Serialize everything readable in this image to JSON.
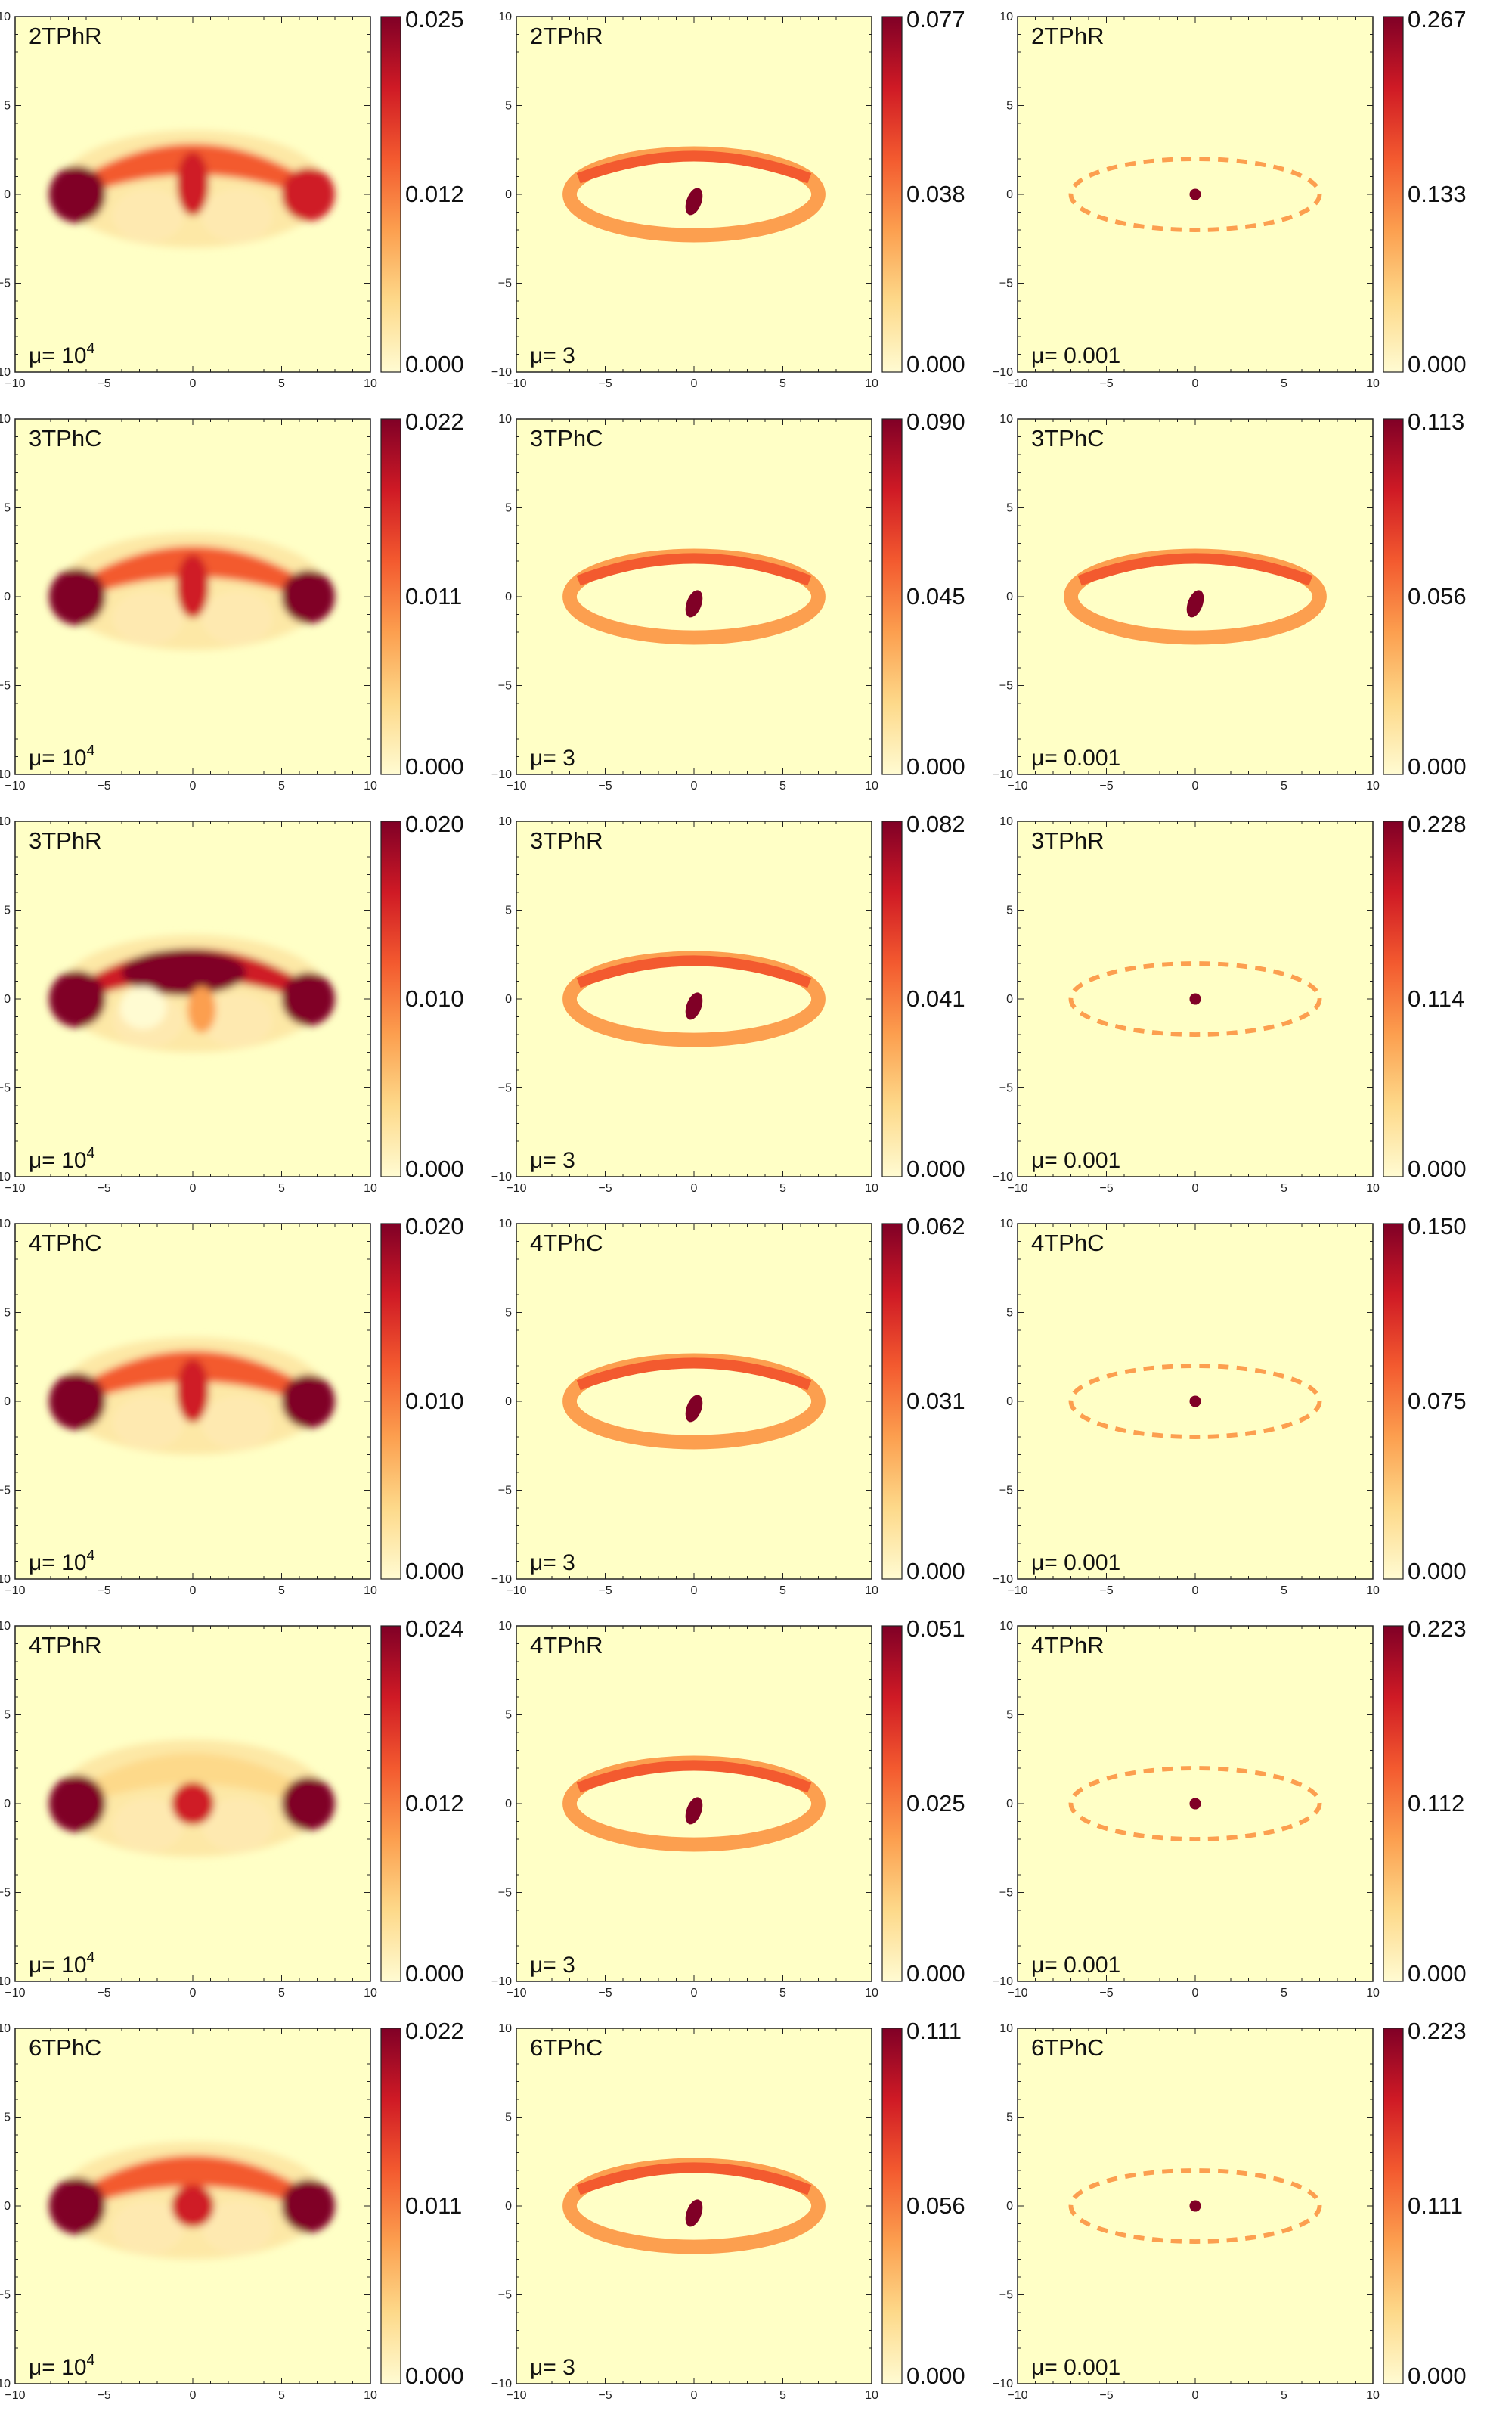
{
  "colorbar_colors": [
    "#fffbd2",
    "#fdd98a",
    "#fc9f4f",
    "#f35a2f",
    "#cf1a25",
    "#800026"
  ],
  "background_color": "#ffffc6",
  "chart_data": [
    {
      "type": "heatmap",
      "molecule": "2TPhR",
      "mu_text": "μ= 10",
      "mu_sup": "4",
      "mu": 10000,
      "cbar_max": "0.025",
      "cbar_mid": "0.012",
      "cbar_min": "0.000",
      "xlim": [
        -10,
        10
      ],
      "ylim": [
        -10,
        10
      ],
      "pattern": "lobes",
      "variant": "2R",
      "x_ticks": [
        "−10",
        "−5",
        "0",
        "5",
        "10"
      ],
      "y_ticks": [
        "−10",
        "−5",
        "0",
        "5",
        "10"
      ]
    },
    {
      "type": "heatmap",
      "molecule": "2TPhR",
      "mu_text": "μ= 3",
      "mu_sup": "",
      "mu": 3,
      "cbar_max": "0.077",
      "cbar_mid": "0.038",
      "cbar_min": "0.000",
      "xlim": [
        -10,
        10
      ],
      "ylim": [
        -10,
        10
      ],
      "pattern": "ring",
      "variant": "ring",
      "x_ticks": [
        "−10",
        "−5",
        "0",
        "5",
        "10"
      ],
      "y_ticks": [
        "−10",
        "−5",
        "0",
        "5",
        "10"
      ]
    },
    {
      "type": "heatmap",
      "molecule": "2TPhR",
      "mu_text": "μ= 0.001",
      "mu_sup": "",
      "mu": 0.001,
      "cbar_max": "0.267",
      "cbar_mid": "0.133",
      "cbar_min": "0.000",
      "xlim": [
        -10,
        10
      ],
      "ylim": [
        -10,
        10
      ],
      "pattern": "sparse",
      "variant": "sparse",
      "x_ticks": [
        "−10",
        "−5",
        "0",
        "5",
        "10"
      ],
      "y_ticks": [
        "−10",
        "−5",
        "0",
        "5",
        "10"
      ]
    },
    {
      "type": "heatmap",
      "molecule": "3TPhC",
      "mu_text": "μ= 10",
      "mu_sup": "4",
      "mu": 10000,
      "cbar_max": "0.022",
      "cbar_mid": "0.011",
      "cbar_min": "0.000",
      "xlim": [
        -10,
        10
      ],
      "ylim": [
        -10,
        10
      ],
      "pattern": "lobes",
      "variant": "3C",
      "x_ticks": [
        "−10",
        "−5",
        "0",
        "5",
        "10"
      ],
      "y_ticks": [
        "−10",
        "−5",
        "0",
        "5",
        "10"
      ]
    },
    {
      "type": "heatmap",
      "molecule": "3TPhC",
      "mu_text": "μ= 3",
      "mu_sup": "",
      "mu": 3,
      "cbar_max": "0.090",
      "cbar_mid": "0.045",
      "cbar_min": "0.000",
      "xlim": [
        -10,
        10
      ],
      "ylim": [
        -10,
        10
      ],
      "pattern": "ring",
      "variant": "ring",
      "x_ticks": [
        "−10",
        "−5",
        "0",
        "5",
        "10"
      ],
      "y_ticks": [
        "−10",
        "−5",
        "0",
        "5",
        "10"
      ]
    },
    {
      "type": "heatmap",
      "molecule": "3TPhC",
      "mu_text": "μ= 0.001",
      "mu_sup": "",
      "mu": 0.001,
      "cbar_max": "0.113",
      "cbar_mid": "0.056",
      "cbar_min": "0.000",
      "xlim": [
        -10,
        10
      ],
      "ylim": [
        -10,
        10
      ],
      "pattern": "ring",
      "variant": "ring",
      "x_ticks": [
        "−10",
        "−5",
        "0",
        "5",
        "10"
      ],
      "y_ticks": [
        "−10",
        "−5",
        "0",
        "5",
        "10"
      ]
    },
    {
      "type": "heatmap",
      "molecule": "3TPhR",
      "mu_text": "μ= 10",
      "mu_sup": "4",
      "mu": 10000,
      "cbar_max": "0.020",
      "cbar_mid": "0.010",
      "cbar_min": "0.000",
      "xlim": [
        -10,
        10
      ],
      "ylim": [
        -10,
        10
      ],
      "pattern": "lobes",
      "variant": "3R",
      "x_ticks": [
        "−10",
        "−5",
        "0",
        "5",
        "10"
      ],
      "y_ticks": [
        "−10",
        "−5",
        "0",
        "5",
        "10"
      ]
    },
    {
      "type": "heatmap",
      "molecule": "3TPhR",
      "mu_text": "μ= 3",
      "mu_sup": "",
      "mu": 3,
      "cbar_max": "0.082",
      "cbar_mid": "0.041",
      "cbar_min": "0.000",
      "xlim": [
        -10,
        10
      ],
      "ylim": [
        -10,
        10
      ],
      "pattern": "ring",
      "variant": "ring",
      "x_ticks": [
        "−10",
        "−5",
        "0",
        "5",
        "10"
      ],
      "y_ticks": [
        "−10",
        "−5",
        "0",
        "5",
        "10"
      ]
    },
    {
      "type": "heatmap",
      "molecule": "3TPhR",
      "mu_text": "μ= 0.001",
      "mu_sup": "",
      "mu": 0.001,
      "cbar_max": "0.228",
      "cbar_mid": "0.114",
      "cbar_min": "0.000",
      "xlim": [
        -10,
        10
      ],
      "ylim": [
        -10,
        10
      ],
      "pattern": "sparse",
      "variant": "sparse",
      "x_ticks": [
        "−10",
        "−5",
        "0",
        "5",
        "10"
      ],
      "y_ticks": [
        "−10",
        "−5",
        "0",
        "5",
        "10"
      ]
    },
    {
      "type": "heatmap",
      "molecule": "4TPhC",
      "mu_text": "μ= 10",
      "mu_sup": "4",
      "mu": 10000,
      "cbar_max": "0.020",
      "cbar_mid": "0.010",
      "cbar_min": "0.000",
      "xlim": [
        -10,
        10
      ],
      "ylim": [
        -10,
        10
      ],
      "pattern": "lobes",
      "variant": "4C",
      "x_ticks": [
        "−10",
        "−5",
        "0",
        "5",
        "10"
      ],
      "y_ticks": [
        "−10",
        "−5",
        "0",
        "5",
        "10"
      ]
    },
    {
      "type": "heatmap",
      "molecule": "4TPhC",
      "mu_text": "μ= 3",
      "mu_sup": "",
      "mu": 3,
      "cbar_max": "0.062",
      "cbar_mid": "0.031",
      "cbar_min": "0.000",
      "xlim": [
        -10,
        10
      ],
      "ylim": [
        -10,
        10
      ],
      "pattern": "ring",
      "variant": "ring",
      "x_ticks": [
        "−10",
        "−5",
        "0",
        "5",
        "10"
      ],
      "y_ticks": [
        "−10",
        "−5",
        "0",
        "5",
        "10"
      ]
    },
    {
      "type": "heatmap",
      "molecule": "4TPhC",
      "mu_text": "μ= 0.001",
      "mu_sup": "",
      "mu": 0.001,
      "cbar_max": "0.150",
      "cbar_mid": "0.075",
      "cbar_min": "0.000",
      "xlim": [
        -10,
        10
      ],
      "ylim": [
        -10,
        10
      ],
      "pattern": "sparse",
      "variant": "sparse",
      "x_ticks": [
        "−10",
        "−5",
        "0",
        "5",
        "10"
      ],
      "y_ticks": [
        "−10",
        "−5",
        "0",
        "5",
        "10"
      ]
    },
    {
      "type": "heatmap",
      "molecule": "4TPhR",
      "mu_text": "μ= 10",
      "mu_sup": "4",
      "mu": 10000,
      "cbar_max": "0.024",
      "cbar_mid": "0.012",
      "cbar_min": "0.000",
      "xlim": [
        -10,
        10
      ],
      "ylim": [
        -10,
        10
      ],
      "pattern": "lobes",
      "variant": "4R",
      "x_ticks": [
        "−10",
        "−5",
        "0",
        "5",
        "10"
      ],
      "y_ticks": [
        "−10",
        "−5",
        "0",
        "5",
        "10"
      ]
    },
    {
      "type": "heatmap",
      "molecule": "4TPhR",
      "mu_text": "μ= 3",
      "mu_sup": "",
      "mu": 3,
      "cbar_max": "0.051",
      "cbar_mid": "0.025",
      "cbar_min": "0.000",
      "xlim": [
        -10,
        10
      ],
      "ylim": [
        -10,
        10
      ],
      "pattern": "ring",
      "variant": "ring",
      "x_ticks": [
        "−10",
        "−5",
        "0",
        "5",
        "10"
      ],
      "y_ticks": [
        "−10",
        "−5",
        "0",
        "5",
        "10"
      ]
    },
    {
      "type": "heatmap",
      "molecule": "4TPhR",
      "mu_text": "μ= 0.001",
      "mu_sup": "",
      "mu": 0.001,
      "cbar_max": "0.223",
      "cbar_mid": "0.112",
      "cbar_min": "0.000",
      "xlim": [
        -10,
        10
      ],
      "ylim": [
        -10,
        10
      ],
      "pattern": "sparse",
      "variant": "sparse",
      "x_ticks": [
        "−10",
        "−5",
        "0",
        "5",
        "10"
      ],
      "y_ticks": [
        "−10",
        "−5",
        "0",
        "5",
        "10"
      ]
    },
    {
      "type": "heatmap",
      "molecule": "6TPhC",
      "mu_text": "μ= 10",
      "mu_sup": "4",
      "mu": 10000,
      "cbar_max": "0.022",
      "cbar_mid": "0.011",
      "cbar_min": "0.000",
      "xlim": [
        -10,
        10
      ],
      "ylim": [
        -10,
        10
      ],
      "pattern": "lobes",
      "variant": "6C",
      "x_ticks": [
        "−10",
        "−5",
        "0",
        "5",
        "10"
      ],
      "y_ticks": [
        "−10",
        "−5",
        "0",
        "5",
        "10"
      ]
    },
    {
      "type": "heatmap",
      "molecule": "6TPhC",
      "mu_text": "μ= 3",
      "mu_sup": "",
      "mu": 3,
      "cbar_max": "0.111",
      "cbar_mid": "0.056",
      "cbar_min": "0.000",
      "xlim": [
        -10,
        10
      ],
      "ylim": [
        -10,
        10
      ],
      "pattern": "ring",
      "variant": "ring",
      "x_ticks": [
        "−10",
        "−5",
        "0",
        "5",
        "10"
      ],
      "y_ticks": [
        "−10",
        "−5",
        "0",
        "5",
        "10"
      ]
    },
    {
      "type": "heatmap",
      "molecule": "6TPhC",
      "mu_text": "μ= 0.001",
      "mu_sup": "",
      "mu": 0.001,
      "cbar_max": "0.223",
      "cbar_mid": "0.111",
      "cbar_min": "0.000",
      "xlim": [
        -10,
        10
      ],
      "ylim": [
        -10,
        10
      ],
      "pattern": "sparse",
      "variant": "sparse",
      "x_ticks": [
        "−10",
        "−5",
        "0",
        "5",
        "10"
      ],
      "y_ticks": [
        "−10",
        "−5",
        "0",
        "5",
        "10"
      ]
    }
  ]
}
